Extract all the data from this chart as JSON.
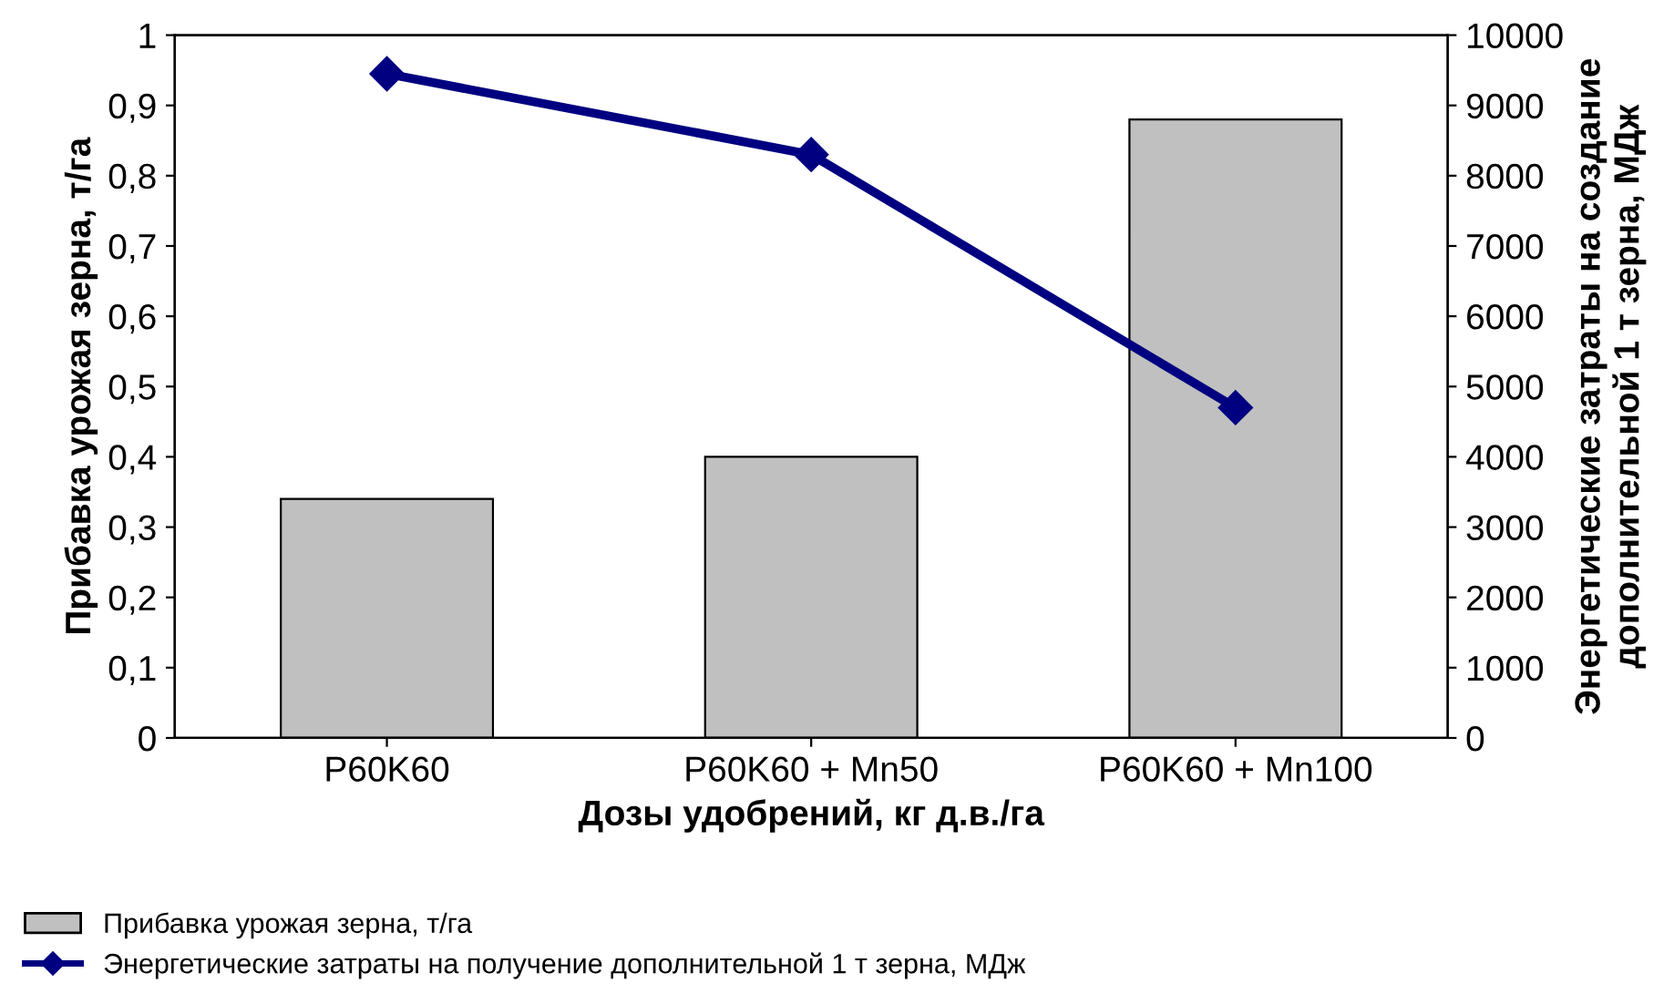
{
  "chart_data": {
    "type": "bar",
    "xlabel": "Дозы удобрений, кг д.в./га",
    "ylabel": "Прибавка урожая зерна, т/га",
    "y2label": "Энергетические затраты на создание\nдополнительной 1 т зерна, МДж",
    "categories": [
      "P60K60",
      "P60K60 + Mn50",
      "P60K60 + Mn100"
    ],
    "series": [
      {
        "name": "Прибавка урожая зерна, т/га",
        "color": "#c0c0c0",
        "values": [
          0.34,
          0.4,
          0.88
        ]
      },
      {
        "type": "line",
        "name": "Энергетические затраты на получение дополнительной 1 т зерна, МДж",
        "color": "#000080",
        "values": [
          9450,
          8300,
          4700
        ],
        "axis": "y2",
        "marker": "diamond"
      }
    ],
    "ylim": [
      0,
      1
    ],
    "yticks": [
      0,
      {
        "value": 0.1,
        "label": "0,1"
      },
      {
        "value": 0.2,
        "label": "0,2"
      },
      {
        "value": 0.3,
        "label": "0,3"
      },
      {
        "value": 0.4,
        "label": "0,4"
      },
      {
        "value": 0.5,
        "label": "0,5"
      },
      {
        "value": 0.6,
        "label": "0,6"
      },
      {
        "value": 0.7,
        "label": "0,7"
      },
      {
        "value": 0.8,
        "label": "0,8"
      },
      {
        "value": 0.9,
        "label": "0,9"
      },
      1
    ],
    "y2lim": [
      0,
      10000
    ],
    "y2ticks": [
      0,
      1000,
      2000,
      3000,
      4000,
      5000,
      6000,
      7000,
      8000,
      9000,
      10000
    ],
    "legend": "bottom left"
  }
}
